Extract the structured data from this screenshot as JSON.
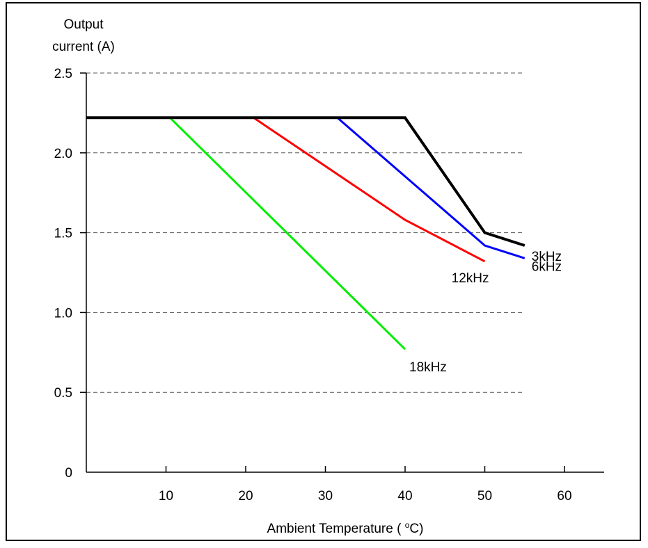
{
  "chart_data": {
    "type": "line",
    "title": "",
    "ylabel_lines": [
      "Output",
      "current (A)"
    ],
    "xlabel_prefix": "Ambient Temperature ( ",
    "xlabel_sup": "o",
    "xlabel_suffix": "C)",
    "xlim": [
      0,
      65
    ],
    "ylim": [
      0,
      2.5
    ],
    "x_ticks": [
      10,
      20,
      30,
      40,
      50,
      60
    ],
    "x_tick_labels": [
      "10",
      "20",
      "30",
      "40",
      "50",
      "60"
    ],
    "y_ticks": [
      0,
      0.5,
      1.0,
      1.5,
      2.0,
      2.5
    ],
    "y_tick_labels": [
      "0",
      "0.5",
      "1.0",
      "1.5",
      "2.0",
      "2.5"
    ],
    "grid": "horizontal-dashed",
    "series": [
      {
        "name": "3kHz",
        "color": "#000000",
        "x": [
          0,
          40,
          50,
          55
        ],
        "y": [
          2.22,
          2.22,
          1.5,
          1.42
        ]
      },
      {
        "name": "6kHz",
        "color": "#0000ff",
        "x": [
          31.5,
          50,
          55
        ],
        "y": [
          2.22,
          1.42,
          1.34
        ]
      },
      {
        "name": "12kHz",
        "color": "#ff0000",
        "x": [
          21,
          40,
          50
        ],
        "y": [
          2.22,
          1.58,
          1.32
        ]
      },
      {
        "name": "18kHz",
        "color": "#00ee00",
        "x": [
          10.5,
          40
        ],
        "y": [
          2.22,
          0.77
        ]
      }
    ]
  }
}
